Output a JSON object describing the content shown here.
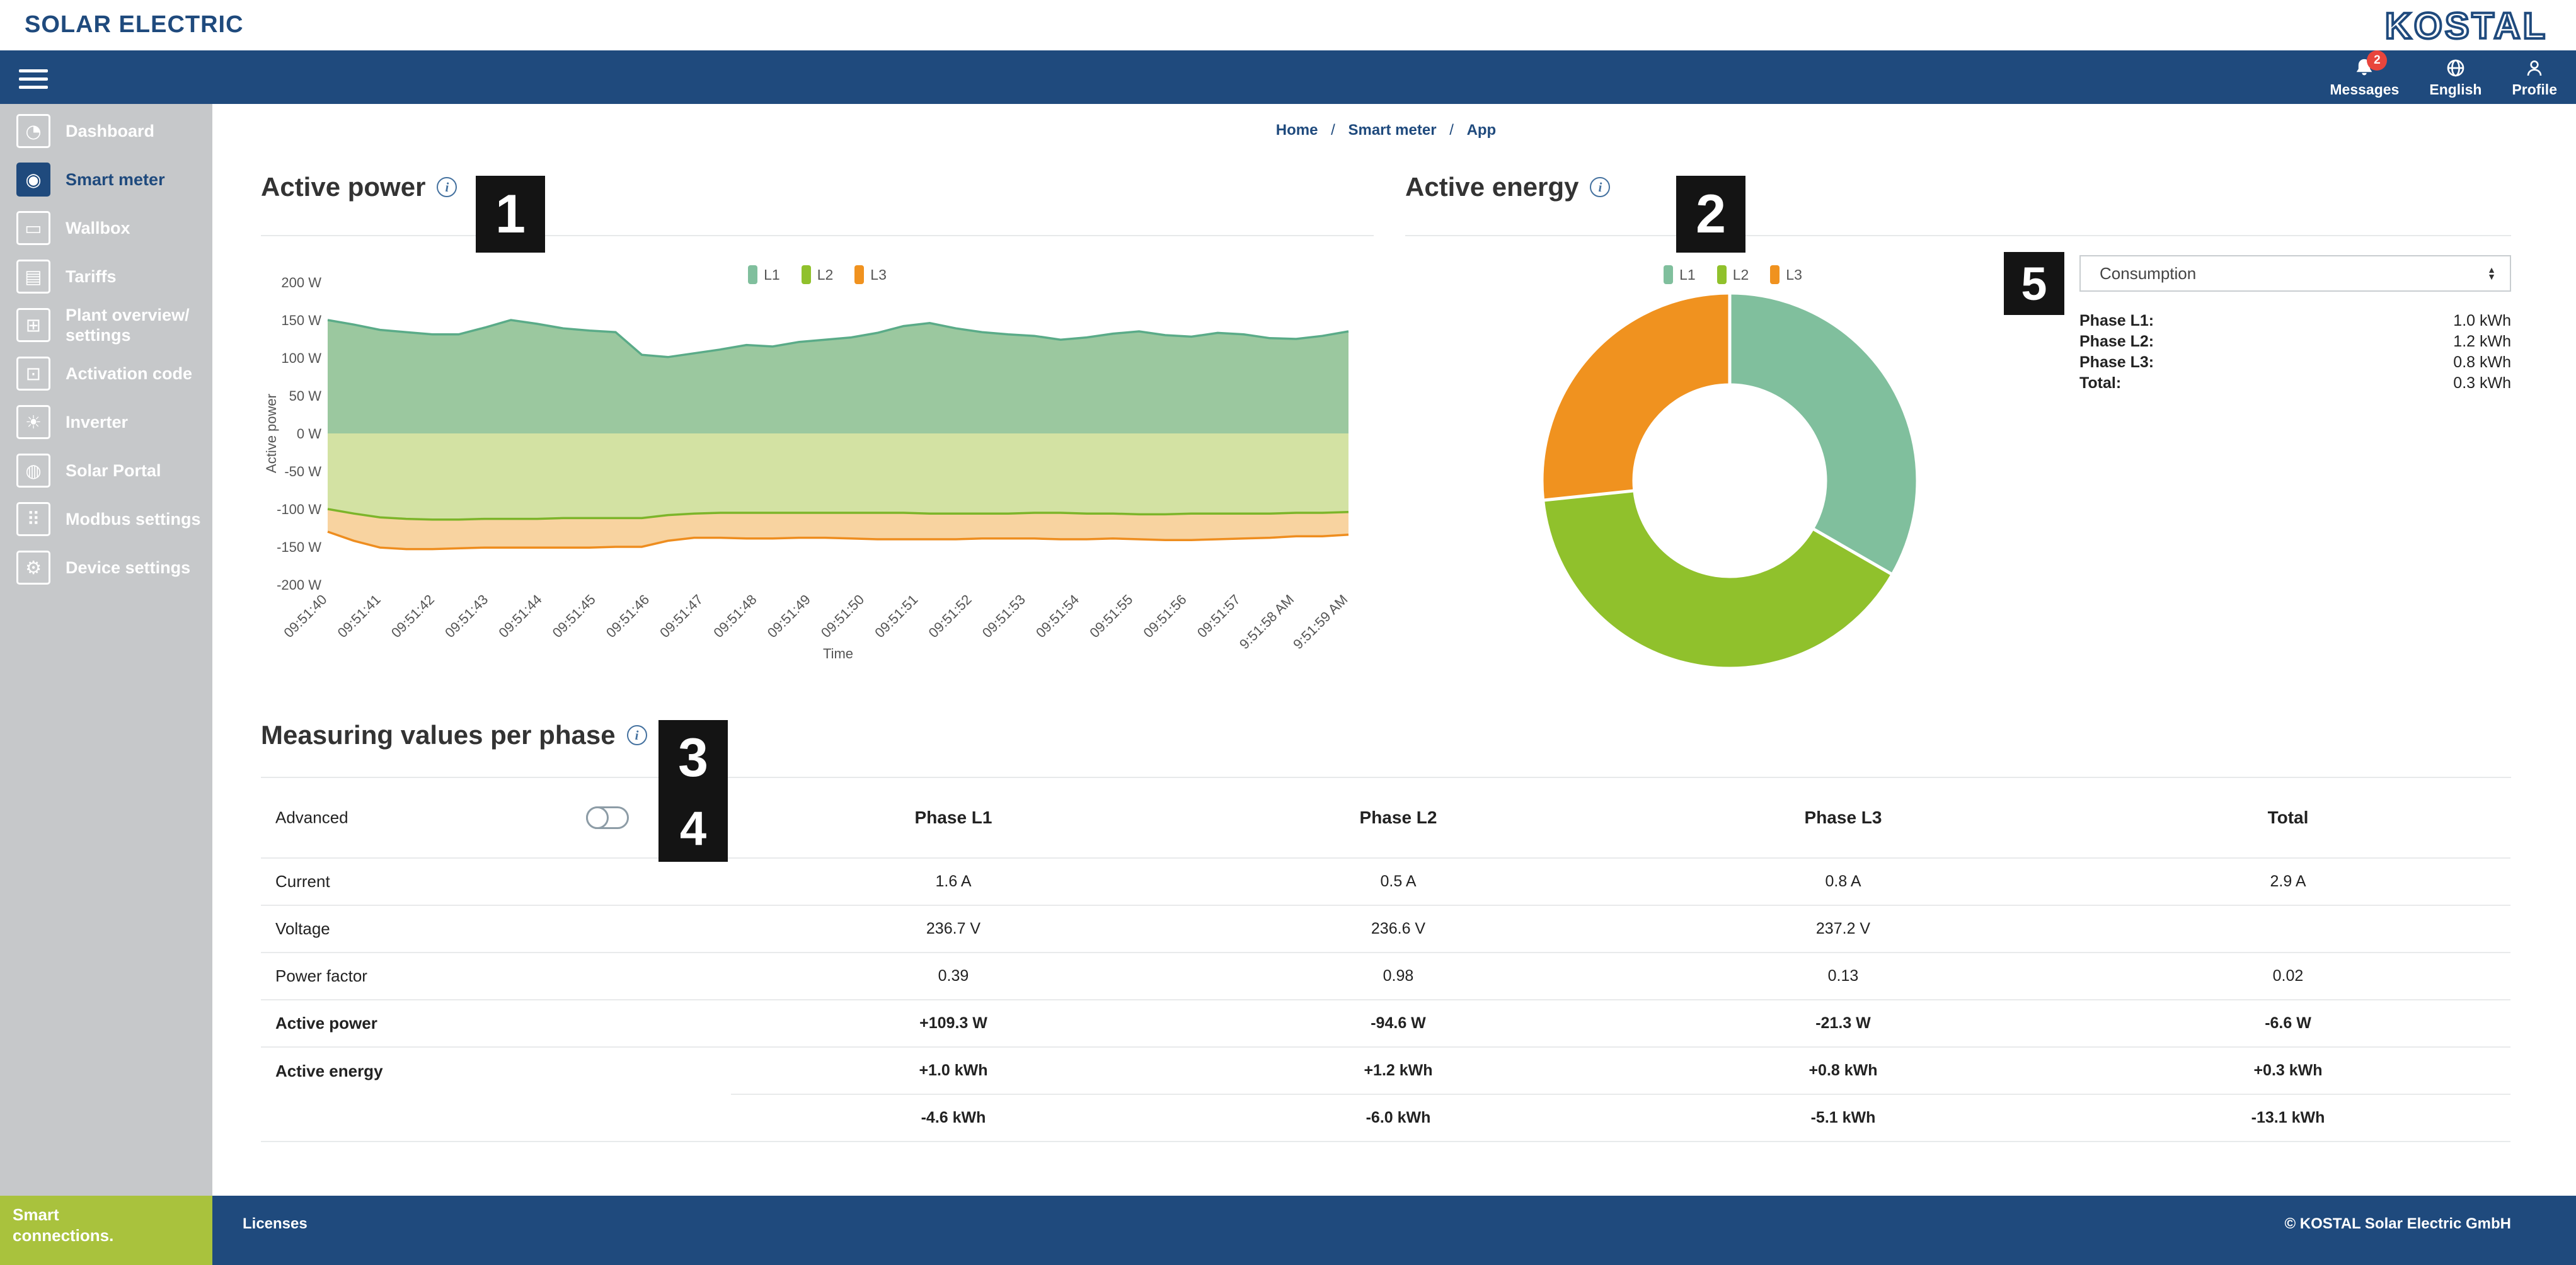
{
  "brand": {
    "left_logo": "SOLAR ELECTRIC",
    "right_logo": "KOSTAL"
  },
  "navbar": {
    "messages_label": "Messages",
    "messages_count": "2",
    "language_label": "English",
    "profile_label": "Profile"
  },
  "sidebar": {
    "items": [
      {
        "label": "Dashboard",
        "icon": "dashboard-gauge-icon",
        "active": false
      },
      {
        "label": "Smart meter",
        "icon": "smart-meter-icon",
        "active": true
      },
      {
        "label": "Wallbox",
        "icon": "wallbox-icon",
        "active": false
      },
      {
        "label": "Tariffs",
        "icon": "tariffs-icon",
        "active": false
      },
      {
        "label": "Plant overview/ settings",
        "icon": "plant-overview-icon",
        "active": false
      },
      {
        "label": "Activation code",
        "icon": "activation-code-icon",
        "active": false
      },
      {
        "label": "Inverter",
        "icon": "inverter-icon",
        "active": false
      },
      {
        "label": "Solar Portal",
        "icon": "solar-portal-icon",
        "active": false
      },
      {
        "label": "Modbus settings",
        "icon": "modbus-settings-icon",
        "active": false
      },
      {
        "label": "Device settings",
        "icon": "device-settings-icon",
        "active": false
      }
    ]
  },
  "breadcrumb": {
    "items": [
      "Home",
      "Smart meter",
      "App"
    ],
    "separator": "/"
  },
  "sections": {
    "active_power": {
      "title": "Active power",
      "badge": "1"
    },
    "active_energy": {
      "title": "Active energy",
      "badge": "2"
    },
    "measuring": {
      "title": "Measuring values per phase",
      "badge": "3",
      "advanced_label": "Advanced",
      "advanced_badge": "4",
      "advanced_toggle_on": false
    },
    "energy_dropdown_badge": "5"
  },
  "energy_panel": {
    "dropdown_value": "Consumption",
    "rows": [
      {
        "label": "Phase L1:",
        "value": "1.0 kWh"
      },
      {
        "label": "Phase L2:",
        "value": "1.2 kWh"
      },
      {
        "label": "Phase L3:",
        "value": "0.8 kWh"
      },
      {
        "label": "Total:",
        "value": "0.3 kWh"
      }
    ]
  },
  "table": {
    "headers": [
      "Phase L1",
      "Phase L2",
      "Phase L3",
      "Total"
    ],
    "rows": [
      {
        "label": "Current",
        "values": [
          "1.6 A",
          "0.5 A",
          "0.8 A",
          "2.9 A"
        ],
        "bold": false,
        "partial_rule": false
      },
      {
        "label": "Voltage",
        "values": [
          "236.7 V",
          "236.6 V",
          "237.2 V",
          ""
        ],
        "bold": false,
        "partial_rule": false
      },
      {
        "label": "Power factor",
        "values": [
          "0.39",
          "0.98",
          "0.13",
          "0.02"
        ],
        "bold": false,
        "partial_rule": false
      },
      {
        "label": "Active power",
        "values": [
          "+109.3 W",
          "-94.6 W",
          "-21.3 W",
          "-6.6 W"
        ],
        "bold": true,
        "partial_rule": false
      },
      {
        "label": "Active energy",
        "values": [
          "+1.0 kWh",
          "+1.2 kWh",
          "+0.8 kWh",
          "+0.3 kWh"
        ],
        "bold": true,
        "partial_rule": true
      },
      {
        "label": "",
        "values": [
          "-4.6 kWh",
          "-6.0 kWh",
          "-5.1 kWh",
          "-13.1 kWh"
        ],
        "bold": true,
        "partial_rule": false
      }
    ]
  },
  "footer": {
    "tagline": "Smart connections.",
    "licenses": "Licenses",
    "copyright": "© KOSTAL Solar Electric GmbH"
  },
  "colors": {
    "brand_blue": "#1f4a7d",
    "sidebar_gray": "#c6c8ca",
    "footer_green": "#a9c23d",
    "badge_black": "#141414",
    "alert_red": "#e8453c",
    "l1_area_fill": "#9bc89f",
    "l1_area_stroke": "#5aab88",
    "l2_area_fill": "#d3e2a3",
    "l2_area_stroke": "#7cb52a",
    "l3_area_fill": "#f8d3a0",
    "l3_area_stroke": "#ee8d1f",
    "donut_l1": "#80bf9d",
    "donut_l2": "#90c12c",
    "donut_l3": "#f0921f"
  },
  "chart_data": [
    {
      "type": "area",
      "title": "Active power",
      "xlabel": "Time",
      "ylabel": "Active power",
      "unit": "W",
      "ylim": [
        -200,
        200
      ],
      "y_ticks": [
        200,
        150,
        100,
        50,
        0,
        -50,
        -100,
        -150,
        -200
      ],
      "x_ticks": [
        "09:51:40",
        "09:51:41",
        "09:51:42",
        "09:51:43",
        "09:51:44",
        "09:51:45",
        "09:51:46",
        "09:51:47",
        "09:51:48",
        "09:51:49",
        "09:51:50",
        "09:51:51",
        "09:51:52",
        "09:51:53",
        "09:51:54",
        "09:51:55",
        "09:51:56",
        "09:51:57",
        "9:51:58 AM",
        "9:51:59 AM"
      ],
      "legend": [
        "L1",
        "L2",
        "L3"
      ],
      "legend_position": "top",
      "grid": false,
      "series": [
        {
          "name": "L1",
          "stacked_on": null,
          "values": [
            150,
            144,
            137,
            134,
            131,
            131,
            140,
            150,
            145,
            139,
            136,
            134,
            104,
            101,
            106,
            111,
            117,
            115,
            121,
            124,
            127,
            133,
            142,
            146,
            139,
            134,
            131,
            129,
            124,
            127,
            132,
            135,
            130,
            128,
            133,
            131,
            126,
            125,
            129,
            135
          ]
        },
        {
          "name": "L2",
          "stacked_on": null,
          "values": [
            -100,
            -106,
            -111,
            -113,
            -114,
            -114,
            -113,
            -113,
            -113,
            -112,
            -112,
            -112,
            -112,
            -108,
            -106,
            -105,
            -105,
            -105,
            -105,
            -105,
            -105,
            -105,
            -105,
            -106,
            -106,
            -106,
            -106,
            -105,
            -105,
            -106,
            -106,
            -107,
            -107,
            -106,
            -106,
            -106,
            -106,
            -105,
            -105,
            -104
          ]
        },
        {
          "name": "L3",
          "stacked_on": "L2",
          "values": [
            -30,
            -36,
            -40,
            -40,
            -39,
            -38,
            -38,
            -38,
            -38,
            -39,
            -39,
            -38,
            -38,
            -34,
            -32,
            -33,
            -34,
            -34,
            -33,
            -33,
            -34,
            -35,
            -35,
            -34,
            -34,
            -33,
            -33,
            -34,
            -35,
            -34,
            -33,
            -33,
            -34,
            -35,
            -34,
            -33,
            -32,
            -31,
            -31,
            -30
          ]
        }
      ]
    },
    {
      "type": "donut",
      "title": "Active energy",
      "labels": [
        "L1",
        "L2",
        "L3"
      ],
      "values": [
        1.0,
        1.2,
        0.8
      ],
      "unit": "kWh",
      "legend": [
        "L1",
        "L2",
        "L3"
      ],
      "legend_position": "top",
      "start_angle": "top",
      "direction": "clockwise"
    }
  ]
}
